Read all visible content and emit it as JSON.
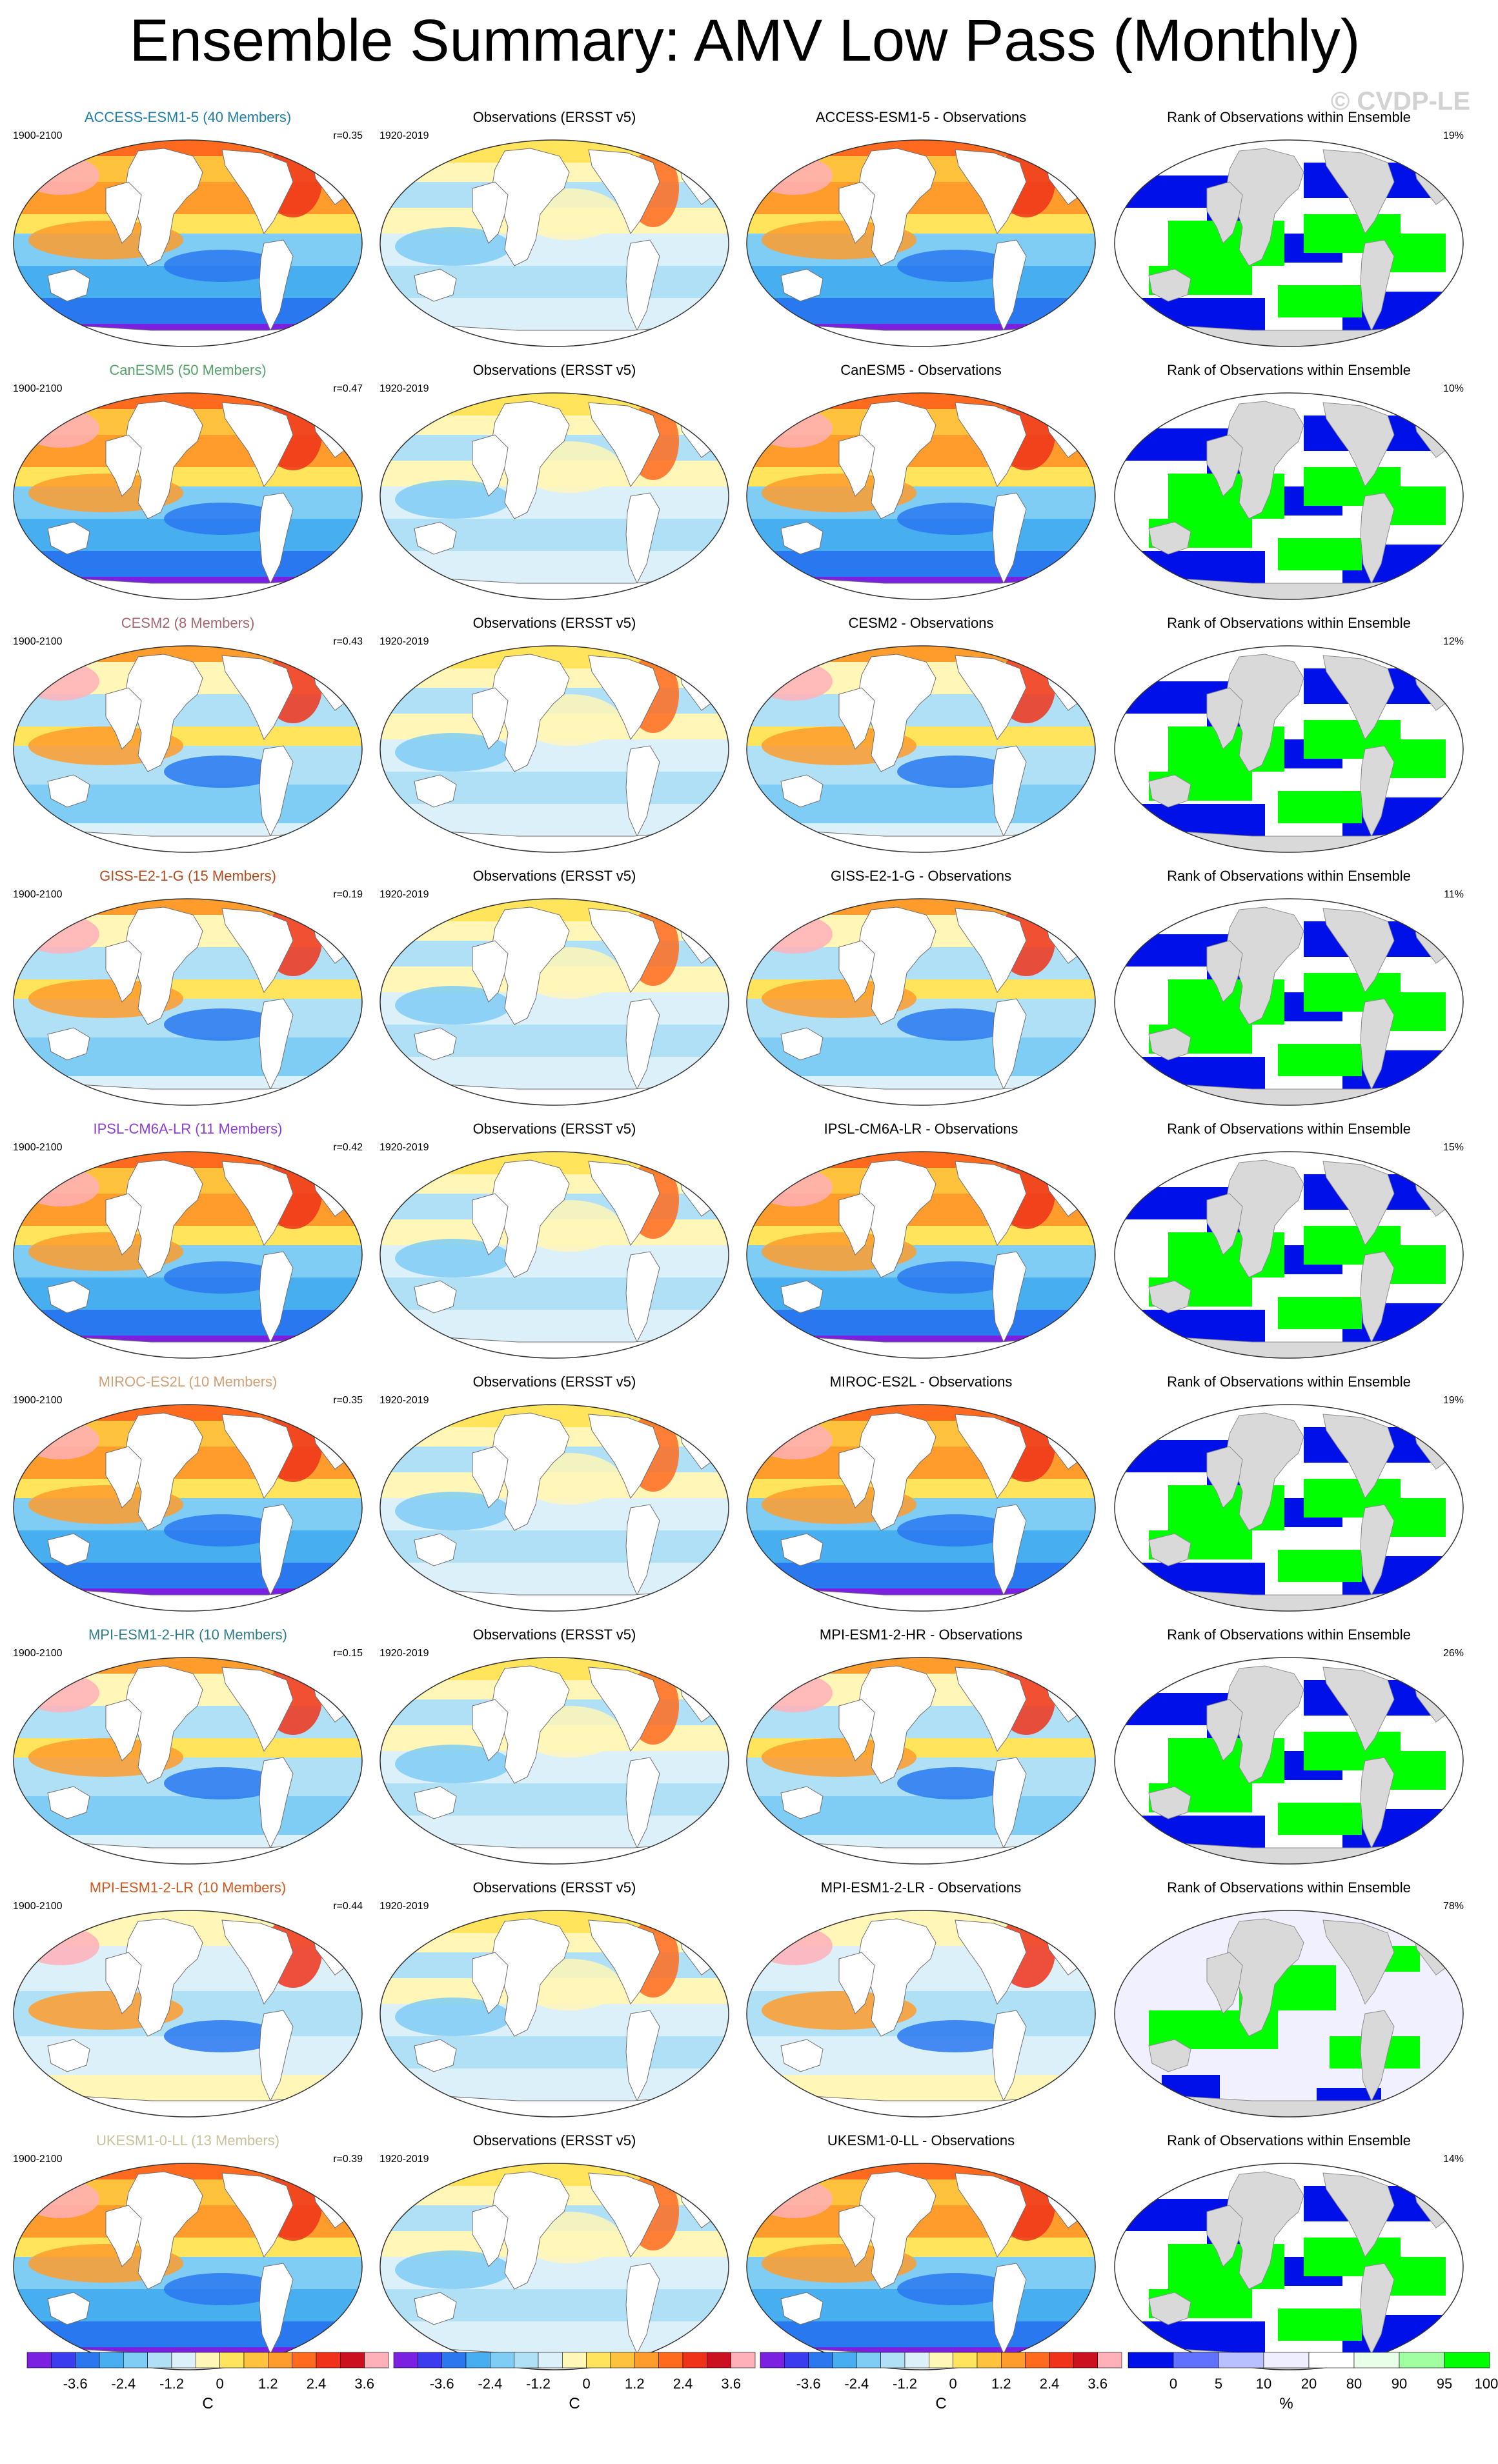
{
  "page": {
    "title": "Ensemble Summary: AMV Low Pass (Monthly)",
    "watermark": "© CVDP-LE"
  },
  "obs_panel": {
    "title": "Observations (ERSST v5)",
    "years": "1920-2019"
  },
  "rank_panel": {
    "title": "Rank of Observations within Ensemble"
  },
  "rows": [
    {
      "model": "ACCESS-ESM1-5",
      "members_label": "ACCESS-ESM1-5 (40 Members)",
      "years": "1900-2100",
      "corr": "r=0.35",
      "diff_title": "ACCESS-ESM1-5 - Observations",
      "rank_pct": "19%",
      "title_color": "#1e7ea8",
      "style": "strong"
    },
    {
      "model": "CanESM5",
      "members_label": "CanESM5 (50 Members)",
      "years": "1900-2100",
      "corr": "r=0.47",
      "diff_title": "CanESM5 - Observations",
      "rank_pct": "10%",
      "title_color": "#56a36a",
      "style": "strong"
    },
    {
      "model": "CESM2",
      "members_label": "CESM2 (8 Members)",
      "years": "1900-2100",
      "corr": "r=0.43",
      "diff_title": "CESM2 - Observations",
      "rank_pct": "12%",
      "title_color": "#a5676d",
      "style": "mild"
    },
    {
      "model": "GISS-E2-1-G",
      "members_label": "GISS-E2-1-G (15 Members)",
      "years": "1900-2100",
      "corr": "r=0.19",
      "diff_title": "GISS-E2-1-G - Observations",
      "rank_pct": "11%",
      "title_color": "#b34b1e",
      "style": "mild"
    },
    {
      "model": "IPSL-CM6A-LR",
      "members_label": "IPSL-CM6A-LR (11 Members)",
      "years": "1900-2100",
      "corr": "r=0.42",
      "diff_title": "IPSL-CM6A-LR - Observations",
      "rank_pct": "15%",
      "title_color": "#8a3fd6",
      "style": "strong"
    },
    {
      "model": "MIROC-ES2L",
      "members_label": "MIROC-ES2L (10 Members)",
      "years": "1900-2100",
      "corr": "r=0.35",
      "diff_title": "MIROC-ES2L - Observations",
      "rank_pct": "19%",
      "title_color": "#d1a076",
      "style": "strong"
    },
    {
      "model": "MPI-ESM1-2-HR",
      "members_label": "MPI-ESM1-2-HR (10 Members)",
      "years": "1900-2100",
      "corr": "r=0.15",
      "diff_title": "MPI-ESM1-2-HR - Observations",
      "rank_pct": "26%",
      "title_color": "#2f7e86",
      "style": "mild"
    },
    {
      "model": "MPI-ESM1-2-LR",
      "members_label": "MPI-ESM1-2-LR (10 Members)",
      "years": "1900-2100",
      "corr": "r=0.44",
      "diff_title": "MPI-ESM1-2-LR - Observations",
      "rank_pct": "78%",
      "title_color": "#d2571f",
      "style": "weak"
    },
    {
      "model": "UKESM1-0-LL",
      "members_label": "UKESM1-0-LL (13 Members)",
      "years": "1900-2100",
      "corr": "r=0.39",
      "diff_title": "UKESM1-0-LL - Observations",
      "rank_pct": "14%",
      "title_color": "#c9c29a",
      "style": "strong"
    }
  ],
  "colorbars": {
    "temp": {
      "ticks": [
        "-3.6",
        "-2.4",
        "-1.2",
        "0",
        "1.2",
        "2.4",
        "3.6"
      ],
      "unit": "C",
      "colors": [
        "#7b1fe0",
        "#3b3bf0",
        "#2a78f0",
        "#47aef0",
        "#7fcdf5",
        "#b0e0f5",
        "#dcf0fa",
        "#fff6b8",
        "#ffe45c",
        "#ffc23c",
        "#ff9c2c",
        "#ff6a1e",
        "#f0321a",
        "#cc1020",
        "#ffb0b8"
      ]
    },
    "rank": {
      "ticks": [
        "0",
        "5",
        "10",
        "20",
        "80",
        "90",
        "95",
        "100"
      ],
      "unit": "%",
      "colors": [
        "#0010e8",
        "#6070ff",
        "#b8c0ff",
        "#eeeeff",
        "#ffffff",
        "#e8ffe8",
        "#a0ffa0",
        "#00ff00"
      ]
    }
  }
}
